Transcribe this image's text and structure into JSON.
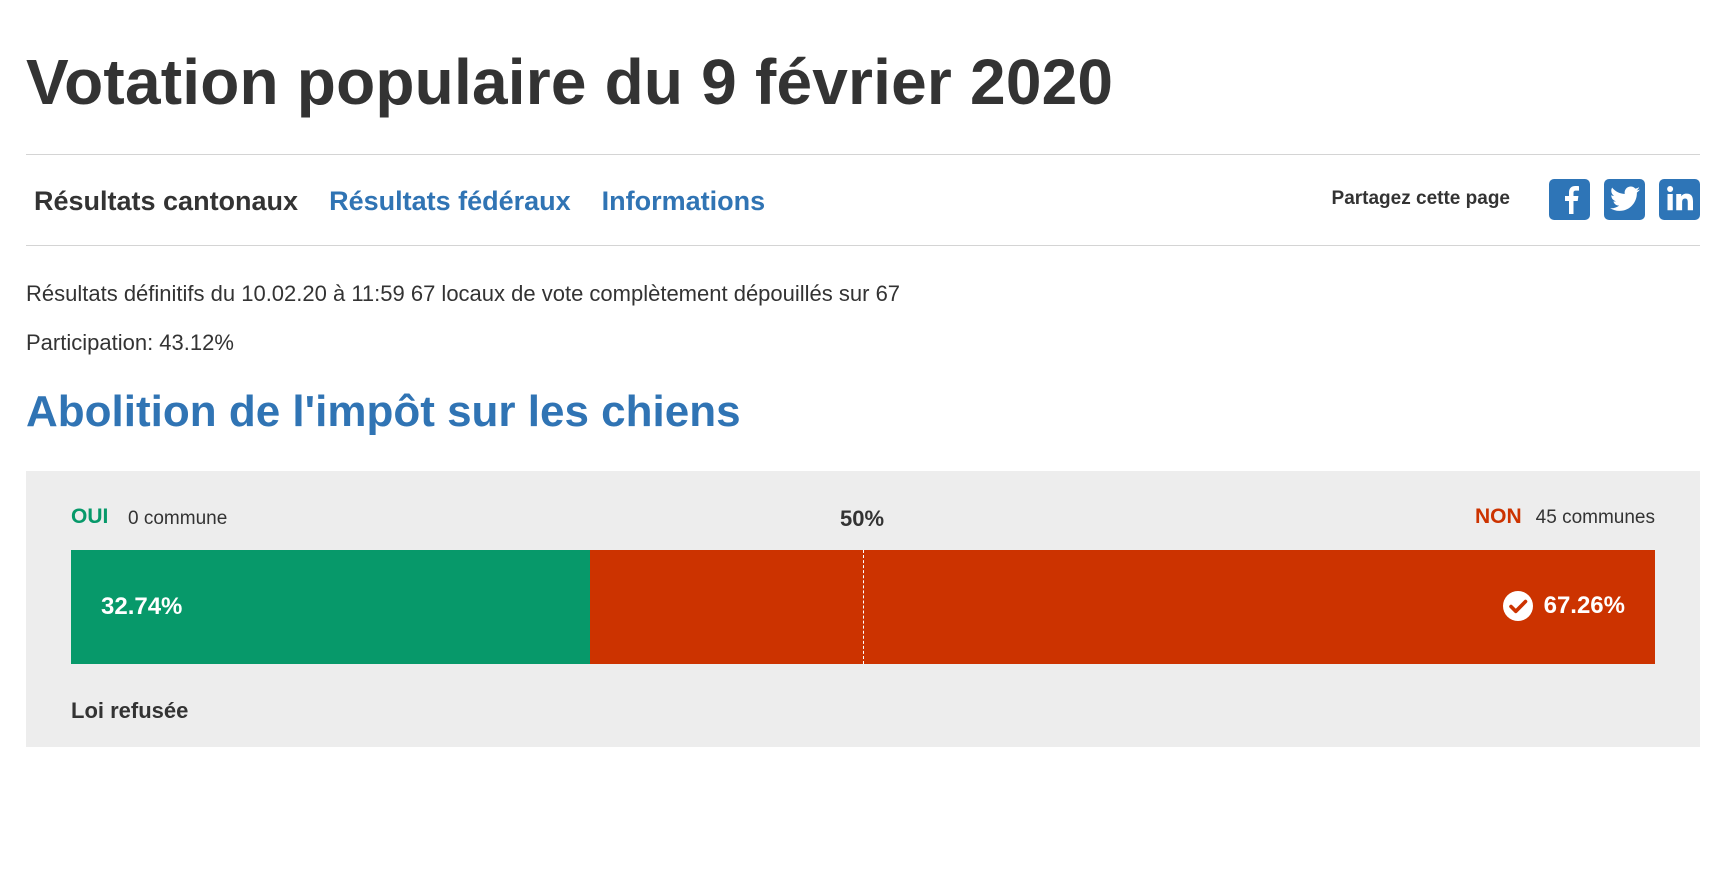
{
  "page": {
    "title": "Votation populaire du 9 février 2020"
  },
  "nav": {
    "items": [
      {
        "label": "Résultats cantonaux",
        "active": true
      },
      {
        "label": "Résultats fédéraux",
        "active": false
      },
      {
        "label": "Informations",
        "active": false
      }
    ]
  },
  "share": {
    "label": "Partagez cette page",
    "icons": [
      "facebook-icon",
      "twitter-icon",
      "linkedin-icon"
    ],
    "color": "#2e75b7"
  },
  "status": {
    "line": "Résultats définitifs du 10.02.20 à 11:59 67 locaux de vote complètement dépouillés sur 67",
    "participation": "Participation: 43.12%"
  },
  "vote": {
    "title": "Abolition de l'impôt sur les chiens",
    "yes_label": "OUI",
    "yes_communes": "0 commune",
    "midpoint_label": "50%",
    "no_label": "NON",
    "no_communes": "45 communes",
    "yes_pct_label": "32.74%",
    "no_pct_label": "67.26%",
    "yes_share": 0.3274,
    "no_share": 0.6726,
    "outcome": "Loi refusée",
    "colors": {
      "yes": "#07996a",
      "no": "#cc3300",
      "link": "#3074b4"
    }
  }
}
